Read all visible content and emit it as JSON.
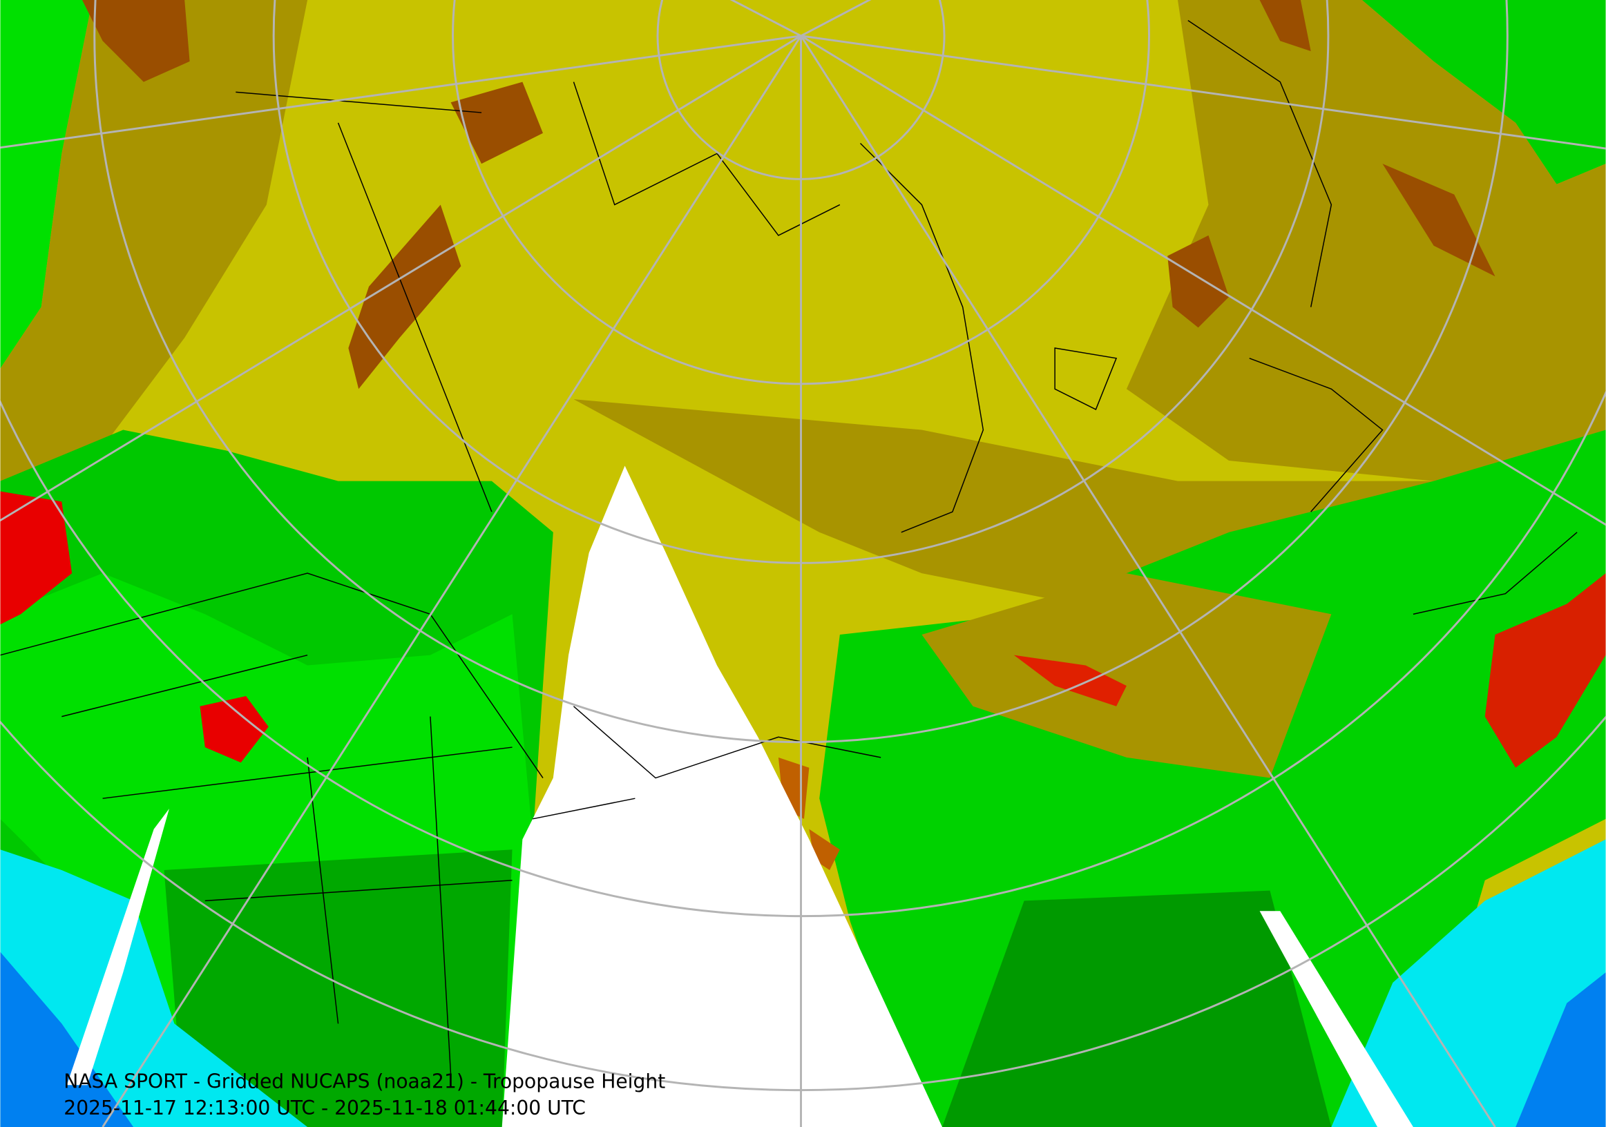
{
  "map": {
    "title": "NASA SPORT - Gridded NUCAPS (noaa21) - Tropopause Height",
    "time_range": "2025-11-17 12:13:00 UTC - 2025-11-18 01:44:00 UTC"
  }
}
